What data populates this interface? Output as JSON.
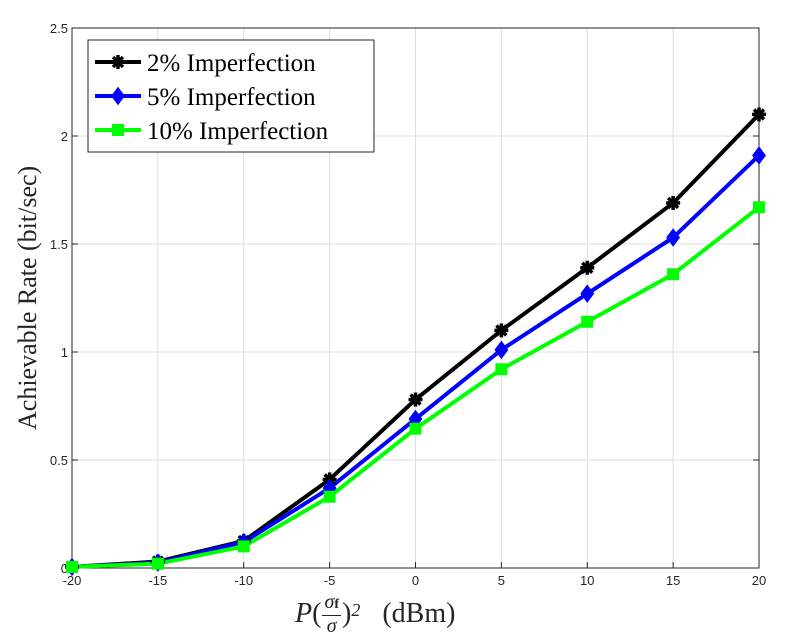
{
  "chart_data": {
    "type": "line",
    "title": "",
    "xlabel": {
      "var": "P",
      "frac_num": "σ",
      "frac_num_sub": "f",
      "frac_den": "σ",
      "exp": "2",
      "unit": "(dBm)"
    },
    "ylabel": "Achievable Rate (bit/sec)",
    "x": [
      -20,
      -15,
      -10,
      -5,
      0,
      5,
      10,
      15,
      20
    ],
    "xlim": [
      -20,
      20
    ],
    "ylim": [
      0,
      2.5
    ],
    "xticks": [
      "-20",
      "-15",
      "-10",
      "-5",
      "0",
      "5",
      "10",
      "15",
      "20"
    ],
    "yticks": [
      "0",
      "0.5",
      "1",
      "1.5",
      "2",
      "2.5"
    ],
    "grid": true,
    "legend_position": "top-left",
    "series": [
      {
        "name": "2% Imperfection",
        "color": "#000000",
        "marker": "asterisk",
        "values": [
          0.005,
          0.03,
          0.125,
          0.41,
          0.78,
          1.1,
          1.39,
          1.69,
          2.1
        ]
      },
      {
        "name": "5% Imperfection",
        "color": "#0000ff",
        "marker": "diamond",
        "values": [
          0.005,
          0.025,
          0.12,
          0.37,
          0.69,
          1.01,
          1.27,
          1.53,
          1.91
        ]
      },
      {
        "name": "10% Imperfection",
        "color": "#00ff00",
        "marker": "square",
        "values": [
          0.005,
          0.02,
          0.1,
          0.33,
          0.645,
          0.92,
          1.14,
          1.36,
          1.67
        ]
      }
    ]
  }
}
